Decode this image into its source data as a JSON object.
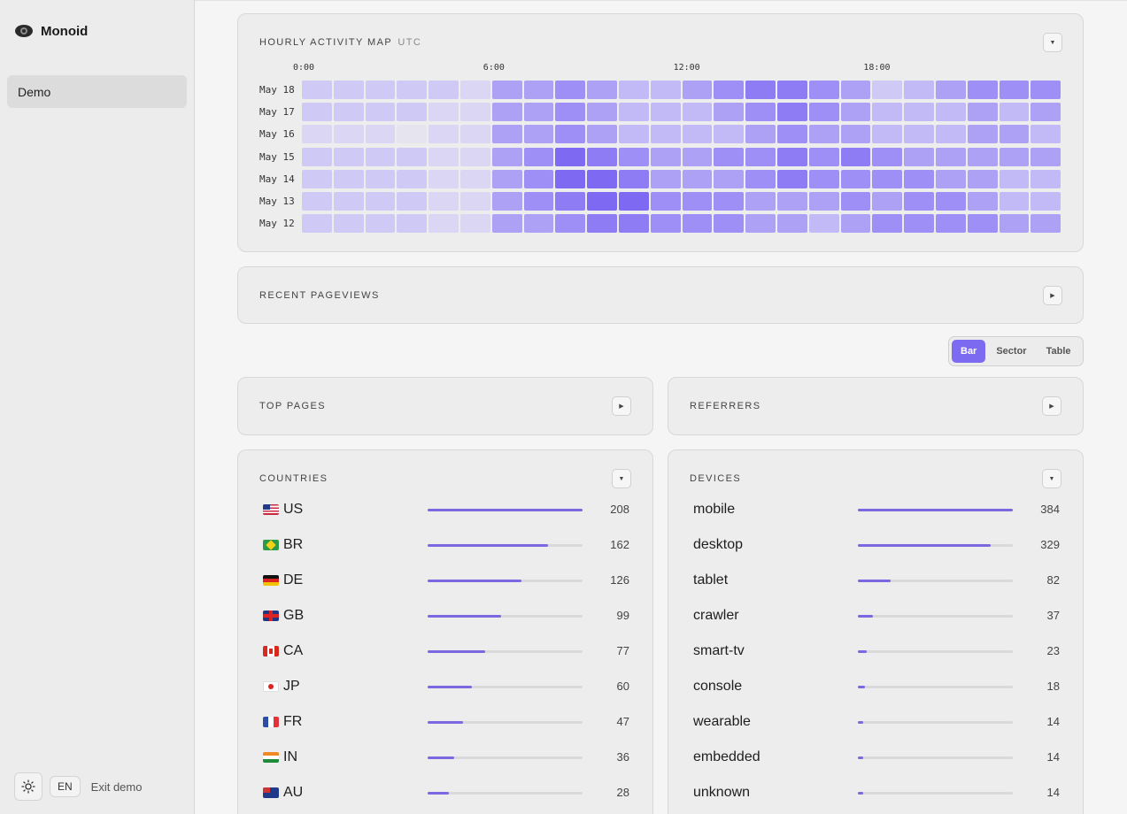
{
  "app": {
    "name": "Monoid"
  },
  "sidebar": {
    "items": [
      {
        "label": "Demo"
      }
    ],
    "footer": {
      "lang": "EN",
      "exit": "Exit demo"
    }
  },
  "heatmap": {
    "title": "HOURLY ACTIVITY MAP",
    "tz": "UTC",
    "hour_labels": [
      {
        "label": "0:00",
        "hour": 0
      },
      {
        "label": "6:00",
        "hour": 6
      },
      {
        "label": "12:00",
        "hour": 12
      },
      {
        "label": "18:00",
        "hour": 18
      }
    ],
    "days": [
      "May 18",
      "May 17",
      "May 16",
      "May 15",
      "May 14",
      "May 13",
      "May 12"
    ],
    "levels": [
      [
        2,
        2,
        2,
        2,
        2,
        1,
        4,
        4,
        5,
        4,
        3,
        3,
        4,
        5,
        6,
        6,
        5,
        4,
        2,
        3,
        4,
        5,
        5,
        5
      ],
      [
        2,
        2,
        2,
        2,
        1,
        1,
        4,
        4,
        5,
        4,
        3,
        3,
        3,
        4,
        5,
        6,
        5,
        4,
        3,
        3,
        3,
        4,
        3,
        4
      ],
      [
        1,
        1,
        1,
        0,
        1,
        1,
        4,
        4,
        5,
        4,
        3,
        3,
        3,
        3,
        4,
        5,
        4,
        4,
        3,
        3,
        3,
        4,
        4,
        3
      ],
      [
        2,
        2,
        2,
        2,
        1,
        1,
        4,
        5,
        7,
        6,
        5,
        4,
        4,
        5,
        5,
        6,
        5,
        6,
        5,
        4,
        4,
        4,
        4,
        4
      ],
      [
        2,
        2,
        2,
        2,
        1,
        1,
        4,
        5,
        7,
        7,
        6,
        4,
        4,
        4,
        5,
        6,
        5,
        5,
        5,
        5,
        4,
        4,
        3,
        3
      ],
      [
        2,
        2,
        2,
        2,
        1,
        1,
        4,
        5,
        6,
        7,
        7,
        5,
        5,
        5,
        4,
        4,
        4,
        5,
        4,
        5,
        5,
        4,
        3,
        3
      ],
      [
        2,
        2,
        2,
        2,
        1,
        1,
        4,
        4,
        5,
        6,
        6,
        5,
        5,
        5,
        4,
        4,
        3,
        4,
        5,
        5,
        5,
        5,
        4,
        4
      ]
    ]
  },
  "recent_pageviews": {
    "title": "RECENT PAGEVIEWS"
  },
  "view_toggle": {
    "options": [
      "Bar",
      "Sector",
      "Table"
    ],
    "selected": "Bar"
  },
  "top_pages": {
    "title": "TOP PAGES"
  },
  "referrers": {
    "title": "REFERRERS"
  },
  "countries": {
    "title": "COUNTRIES",
    "rows": [
      {
        "label": "US",
        "flag": "us",
        "value": 208
      },
      {
        "label": "BR",
        "flag": "br",
        "value": 162
      },
      {
        "label": "DE",
        "flag": "de",
        "value": 126
      },
      {
        "label": "GB",
        "flag": "gb",
        "value": 99
      },
      {
        "label": "CA",
        "flag": "ca",
        "value": 77
      },
      {
        "label": "JP",
        "flag": "jp",
        "value": 60
      },
      {
        "label": "FR",
        "flag": "fr",
        "value": 47
      },
      {
        "label": "IN",
        "flag": "in",
        "value": 36
      },
      {
        "label": "AU",
        "flag": "au",
        "value": 28
      }
    ]
  },
  "devices": {
    "title": "DEVICES",
    "rows": [
      {
        "label": "mobile",
        "value": 384
      },
      {
        "label": "desktop",
        "value": 329
      },
      {
        "label": "tablet",
        "value": 82
      },
      {
        "label": "crawler",
        "value": 37
      },
      {
        "label": "smart-tv",
        "value": 23
      },
      {
        "label": "console",
        "value": 18
      },
      {
        "label": "wearable",
        "value": 14
      },
      {
        "label": "embedded",
        "value": 14
      },
      {
        "label": "unknown",
        "value": 14
      }
    ]
  },
  "colors": {
    "accent": "#7c6af0",
    "heat_scale": [
      "#e6e4ee",
      "#dad6f4",
      "#cfc9f6",
      "#c2baf7",
      "#ada1f6",
      "#9d8ff5",
      "#8d7cf4",
      "#7d69f2"
    ]
  }
}
